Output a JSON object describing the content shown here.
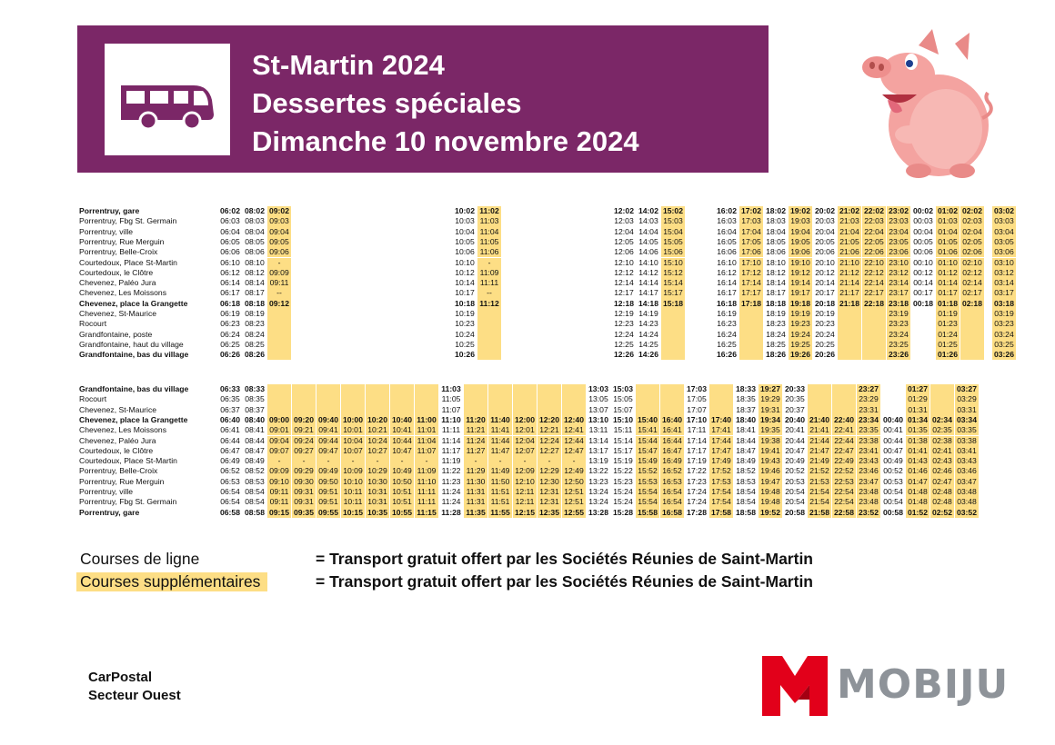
{
  "header": {
    "line1": "St-Martin 2024",
    "line2": "Dessertes spéciales",
    "line3": "Dimanche 10 novembre 2024",
    "banner_color": "#7b2767"
  },
  "highlight_color": "#fdde85",
  "timetable_outbound": {
    "stops": [
      "Porrentruy, gare",
      "Porrentruy, Fbg St. Germain",
      "Porrentruy, ville",
      "Porrentruy, Rue Merguin",
      "Porrentruy, Belle-Croix",
      "Courtedoux, Place St-Martin",
      "Courtedoux, le Clôtre",
      "Chevenez, Paléo Jura",
      "Chevenez, Les Moissons",
      "Chevenez, place la Grangette",
      "Chevenez, St-Maurice",
      "Rocourt",
      "Grandfontaine, poste",
      "Grandfontaine, haut du village",
      "Grandfontaine, bas du village"
    ],
    "bold_rows": [
      0,
      9,
      14
    ],
    "columns": [
      {
        "hl": false,
        "times": [
          "06:02",
          "06:03",
          "06:04",
          "06:05",
          "06:06",
          "06:10",
          "06:12",
          "06:14",
          "06:17",
          "06:18",
          "06:19",
          "06:23",
          "06:24",
          "06:25",
          "06:26"
        ]
      },
      {
        "hl": false,
        "times": [
          "08:02",
          "08:03",
          "08:04",
          "08:05",
          "08:06",
          "08:10",
          "08:12",
          "08:14",
          "08:17",
          "08:18",
          "08:19",
          "08:23",
          "08:24",
          "08:25",
          "08:26"
        ]
      },
      {
        "hl": true,
        "times": [
          "09:02",
          "09:03",
          "09:04",
          "09:05",
          "09:06",
          "-",
          "09:09",
          "09:11",
          "--",
          "09:12",
          "",
          "",
          "",
          "",
          ""
        ]
      },
      {
        "hl": false,
        "times": [
          "10:02",
          "10:03",
          "10:04",
          "10:05",
          "10:06",
          "10:10",
          "10:12",
          "10:14",
          "10:17",
          "10:18",
          "10:19",
          "10:23",
          "10:24",
          "10:25",
          "10:26"
        ]
      },
      {
        "hl": true,
        "times": [
          "11:02",
          "11:03",
          "11:04",
          "11:05",
          "11:06",
          "-",
          "11:09",
          "11:11",
          "--",
          "11:12",
          "",
          "",
          "",
          "",
          ""
        ]
      },
      {
        "hl": false,
        "times": [
          "12:02",
          "12:03",
          "12:04",
          "12:05",
          "12:06",
          "12:10",
          "12:12",
          "12:14",
          "12:17",
          "12:18",
          "12:19",
          "12:23",
          "12:24",
          "12:25",
          "12:26"
        ]
      },
      {
        "hl": false,
        "times": [
          "14:02",
          "14:03",
          "14:04",
          "14:05",
          "14:06",
          "14:10",
          "14:12",
          "14:14",
          "14:17",
          "14:18",
          "14:19",
          "14:23",
          "14:24",
          "14:25",
          "14:26"
        ]
      },
      {
        "hl": true,
        "times": [
          "15:02",
          "15:03",
          "15:04",
          "15:05",
          "15:06",
          "15:10",
          "15:12",
          "15:14",
          "15:17",
          "15:18",
          "",
          "",
          "",
          "",
          ""
        ]
      },
      {
        "hl": false,
        "times": [
          "16:02",
          "16:03",
          "16:04",
          "16:05",
          "16:06",
          "16:10",
          "16:12",
          "16:14",
          "16:17",
          "16:18",
          "16:19",
          "16:23",
          "16:24",
          "16:25",
          "16:26"
        ]
      },
      {
        "hl": true,
        "times": [
          "17:02",
          "17:03",
          "17:04",
          "17:05",
          "17:06",
          "17:10",
          "17:12",
          "17:14",
          "17:17",
          "17:18",
          "",
          "",
          "",
          "",
          ""
        ]
      },
      {
        "hl": false,
        "times": [
          "18:02",
          "18:03",
          "18:04",
          "18:05",
          "18:06",
          "18:10",
          "18:12",
          "18:14",
          "18:17",
          "18:18",
          "18:19",
          "18:23",
          "18:24",
          "18:25",
          "18:26"
        ]
      },
      {
        "hl": true,
        "times": [
          "19:02",
          "19:03",
          "19:04",
          "19:05",
          "19:06",
          "19:10",
          "19:12",
          "19:14",
          "19:17",
          "19:18",
          "19:19",
          "19:23",
          "19:24",
          "19:25",
          "19:26"
        ]
      },
      {
        "hl": false,
        "times": [
          "20:02",
          "20:03",
          "20:04",
          "20:05",
          "20:06",
          "20:10",
          "20:12",
          "20:14",
          "20:17",
          "20:18",
          "20:19",
          "20:23",
          "20:24",
          "20:25",
          "20:26"
        ]
      },
      {
        "hl": true,
        "times": [
          "21:02",
          "21:03",
          "21:04",
          "21:05",
          "21:06",
          "21:10",
          "21:12",
          "21:14",
          "21:17",
          "21:18",
          "",
          "",
          "",
          "",
          ""
        ]
      },
      {
        "hl": true,
        "times": [
          "22:02",
          "22:03",
          "22:04",
          "22:05",
          "22:06",
          "22:10",
          "22:12",
          "22:14",
          "22:17",
          "22:18",
          "",
          "",
          "",
          "",
          ""
        ]
      },
      {
        "hl": true,
        "times": [
          "23:02",
          "23:03",
          "23:04",
          "23:05",
          "23:06",
          "23:10",
          "23:12",
          "23:14",
          "23:17",
          "23:18",
          "23:19",
          "23:23",
          "23:24",
          "23:25",
          "23:26"
        ]
      },
      {
        "hl": false,
        "times": [
          "00:02",
          "00:03",
          "00:04",
          "00:05",
          "00:06",
          "00:10",
          "00:12",
          "00:14",
          "00:17",
          "00:18",
          "",
          "",
          "",
          "",
          ""
        ]
      },
      {
        "hl": true,
        "times": [
          "01:02",
          "01:03",
          "01:04",
          "01:05",
          "01:06",
          "01:10",
          "01:12",
          "01:14",
          "01:17",
          "01:18",
          "01:19",
          "01:23",
          "01:24",
          "01:25",
          "01:26"
        ]
      },
      {
        "hl": true,
        "times": [
          "02:02",
          "02:03",
          "02:04",
          "02:05",
          "02:06",
          "02:10",
          "02:12",
          "02:14",
          "02:17",
          "02:18",
          "",
          "",
          "",
          "",
          ""
        ]
      },
      {
        "hl": true,
        "times": [
          "03:02",
          "03:03",
          "03:04",
          "03:05",
          "03:06",
          "03:10",
          "03:12",
          "03:14",
          "03:17",
          "03:18",
          "03:19",
          "03:23",
          "03:24",
          "03:25",
          "03:26"
        ]
      }
    ]
  },
  "timetable_return": {
    "stops": [
      "Grandfontaine, bas du village",
      "Rocourt",
      "Chevenez, St-Maurice",
      "Chevenez, place la Grangette",
      "Chevenez, Les Moissons",
      "Chevenez, Paléo Jura",
      "Courtedoux, le Clôtre",
      "Courtedoux, Place St-Martin",
      "Porrentruy, Belle-Croix",
      "Porrentruy, Rue Merguin",
      "Porrentruy, ville",
      "Porrentruy, Fbg St. Germain",
      "Porrentruy, gare"
    ],
    "bold_rows": [
      0,
      3,
      12
    ],
    "columns": [
      {
        "hl": false,
        "times": [
          "06:33",
          "06:35",
          "06:37",
          "06:40",
          "06:41",
          "06:44",
          "06:47",
          "06:49",
          "06:52",
          "06:53",
          "06:54",
          "06:54",
          "06:58"
        ]
      },
      {
        "hl": false,
        "times": [
          "08:33",
          "08:35",
          "08:37",
          "08:40",
          "08:41",
          "08:44",
          "08:47",
          "08:49",
          "08:52",
          "08:53",
          "08:54",
          "08:54",
          "08:58"
        ]
      },
      {
        "hl": true,
        "times": [
          "",
          "",
          "",
          "09:00",
          "09:01",
          "09:04",
          "09:07",
          "-",
          "09:09",
          "09:10",
          "09:11",
          "09:11",
          "09:15"
        ]
      },
      {
        "hl": true,
        "times": [
          "",
          "",
          "",
          "09:20",
          "09:21",
          "09:24",
          "09:27",
          "-",
          "09:29",
          "09:30",
          "09:31",
          "09:31",
          "09:35"
        ]
      },
      {
        "hl": true,
        "times": [
          "",
          "",
          "",
          "09:40",
          "09:41",
          "09:44",
          "09:47",
          "-",
          "09:49",
          "09:50",
          "09:51",
          "09:51",
          "09:55"
        ]
      },
      {
        "hl": true,
        "times": [
          "",
          "",
          "",
          "10:00",
          "10:01",
          "10:04",
          "10:07",
          "-",
          "10:09",
          "10:10",
          "10:11",
          "10:11",
          "10:15"
        ]
      },
      {
        "hl": true,
        "times": [
          "",
          "",
          "",
          "10:20",
          "10:21",
          "10:24",
          "10:27",
          "-",
          "10:29",
          "10:30",
          "10:31",
          "10:31",
          "10:35"
        ]
      },
      {
        "hl": true,
        "times": [
          "",
          "",
          "",
          "10:40",
          "10:41",
          "10:44",
          "10:47",
          "-",
          "10:49",
          "10:50",
          "10:51",
          "10:51",
          "10:55"
        ]
      },
      {
        "hl": true,
        "times": [
          "",
          "",
          "",
          "11:00",
          "11:01",
          "11:04",
          "11:07",
          "-",
          "11:09",
          "11:10",
          "11:11",
          "11:11",
          "11:15"
        ]
      },
      {
        "hl": false,
        "times": [
          "11:03",
          "11:05",
          "11:07",
          "11:10",
          "11:11",
          "11:14",
          "11:17",
          "11:19",
          "11:22",
          "11:23",
          "11:24",
          "11:24",
          "11:28"
        ]
      },
      {
        "hl": true,
        "times": [
          "",
          "",
          "",
          "11:20",
          "11:21",
          "11:24",
          "11:27",
          "-",
          "11:29",
          "11:30",
          "11:31",
          "11:31",
          "11:35"
        ]
      },
      {
        "hl": true,
        "times": [
          "",
          "",
          "",
          "11:40",
          "11:41",
          "11:44",
          "11:47",
          "-",
          "11:49",
          "11:50",
          "11:51",
          "11:51",
          "11:55"
        ]
      },
      {
        "hl": true,
        "times": [
          "",
          "",
          "",
          "12:00",
          "12:01",
          "12:04",
          "12:07",
          "-",
          "12:09",
          "12:10",
          "12:11",
          "12:11",
          "12:15"
        ]
      },
      {
        "hl": true,
        "times": [
          "",
          "",
          "",
          "12:20",
          "12:21",
          "12:24",
          "12:27",
          "-",
          "12:29",
          "12:30",
          "12:31",
          "12:31",
          "12:35"
        ]
      },
      {
        "hl": true,
        "times": [
          "",
          "",
          "",
          "12:40",
          "12:41",
          "12:44",
          "12:47",
          "-",
          "12:49",
          "12:50",
          "12:51",
          "12:51",
          "12:55"
        ]
      },
      {
        "hl": false,
        "times": [
          "13:03",
          "13:05",
          "13:07",
          "13:10",
          "13:11",
          "13:14",
          "13:17",
          "13:19",
          "13:22",
          "13:23",
          "13:24",
          "13:24",
          "13:28"
        ]
      },
      {
        "hl": false,
        "times": [
          "15:03",
          "15:05",
          "15:07",
          "15:10",
          "15:11",
          "15:14",
          "15:17",
          "15:19",
          "15:22",
          "15:23",
          "15:24",
          "15:24",
          "15:28"
        ]
      },
      {
        "hl": true,
        "times": [
          "",
          "",
          "",
          "15:40",
          "15:41",
          "15:44",
          "15:47",
          "15:49",
          "15:52",
          "15:53",
          "15:54",
          "15:54",
          "15:58"
        ]
      },
      {
        "hl": true,
        "times": [
          "",
          "",
          "",
          "16:40",
          "16:41",
          "16:44",
          "16:47",
          "16:49",
          "16:52",
          "16:53",
          "16:54",
          "16:54",
          "16:58"
        ]
      },
      {
        "hl": false,
        "times": [
          "17:03",
          "17:05",
          "17:07",
          "17:10",
          "17:11",
          "17:14",
          "17:17",
          "17:19",
          "17:22",
          "17:23",
          "17:24",
          "17:24",
          "17:28"
        ]
      },
      {
        "hl": true,
        "times": [
          "",
          "",
          "",
          "17:40",
          "17:41",
          "17:44",
          "17:47",
          "17:49",
          "17:52",
          "17:53",
          "17:54",
          "17:54",
          "17:58"
        ]
      },
      {
        "hl": false,
        "times": [
          "18:33",
          "18:35",
          "18:37",
          "18:40",
          "18:41",
          "18:44",
          "18:47",
          "18:49",
          "18:52",
          "18:53",
          "18:54",
          "18:54",
          "18:58"
        ]
      },
      {
        "hl": true,
        "times": [
          "19:27",
          "19:29",
          "19:31",
          "19:34",
          "19:35",
          "19:38",
          "19:41",
          "19:43",
          "19:46",
          "19:47",
          "19:48",
          "19:48",
          "19:52"
        ]
      },
      {
        "hl": false,
        "times": [
          "20:33",
          "20:35",
          "20:37",
          "20:40",
          "20:41",
          "20:44",
          "20:47",
          "20:49",
          "20:52",
          "20:53",
          "20:54",
          "20:54",
          "20:58"
        ]
      },
      {
        "hl": true,
        "times": [
          "",
          "",
          "",
          "21:40",
          "21:41",
          "21:44",
          "21:47",
          "21:49",
          "21:52",
          "21:53",
          "21:54",
          "21:54",
          "21:58"
        ]
      },
      {
        "hl": true,
        "times": [
          "",
          "",
          "",
          "22:40",
          "22:41",
          "22:44",
          "22:47",
          "22:49",
          "22:52",
          "22:53",
          "22:54",
          "22:54",
          "22:58"
        ]
      },
      {
        "hl": true,
        "times": [
          "23:27",
          "23:29",
          "23:31",
          "23:34",
          "23:35",
          "23:38",
          "23:41",
          "23:43",
          "23:46",
          "23:47",
          "23:48",
          "23:48",
          "23:52"
        ]
      },
      {
        "hl": false,
        "times": [
          "",
          "",
          "",
          "00:40",
          "00:41",
          "00:44",
          "00:47",
          "00:49",
          "00:52",
          "00:53",
          "00:54",
          "00:54",
          "00:58"
        ]
      },
      {
        "hl": true,
        "times": [
          "01:27",
          "01:29",
          "01:31",
          "01:34",
          "01:35",
          "01:38",
          "01:41",
          "01:43",
          "01:46",
          "01:47",
          "01:48",
          "01:48",
          "01:52"
        ]
      },
      {
        "hl": true,
        "times": [
          "",
          "",
          "",
          "02:34",
          "02:35",
          "02:38",
          "02:41",
          "02:43",
          "02:46",
          "02:47",
          "02:48",
          "02:48",
          "02:52"
        ]
      },
      {
        "hl": true,
        "times": [
          "03:27",
          "03:29",
          "03:31",
          "03:34",
          "03:35",
          "03:38",
          "03:41",
          "03:43",
          "03:46",
          "03:47",
          "03:48",
          "03:48",
          "03:52"
        ]
      }
    ]
  },
  "legend": {
    "regular_label": "Courses de ligne",
    "extra_label": "Courses supplémentaires",
    "regular_note": "= Transport gratuit offert par les Sociétés Réunies de Saint-Martin",
    "extra_note": "= Transport gratuit offert par les Sociétés Réunies de Saint-Martin"
  },
  "footer": {
    "operator_line1": "CarPostal",
    "operator_line2": "Secteur Ouest",
    "brand": "MOBIJU",
    "brand_red": "#e2001a",
    "brand_gray": "#8e9399"
  },
  "icons": {
    "bus": "bus-icon",
    "mascot": "pig-mascot-icon",
    "logo": "mobiju-m-logo-icon"
  }
}
